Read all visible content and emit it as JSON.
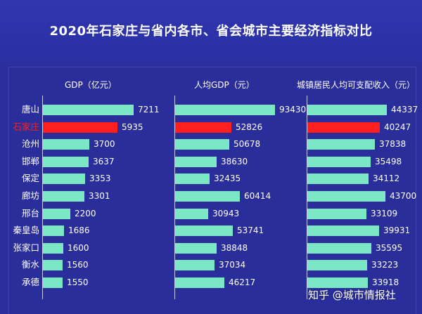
{
  "title": "2020年石家庄与省内各市、省会城市主要经济指标对比",
  "watermark": "知乎 @城市情报社",
  "colors": {
    "bar": "#7be7c4",
    "highlight": "#ff1f1f",
    "background": "#2b2f9e"
  },
  "chart_data": {
    "type": "bar",
    "orientation": "horizontal",
    "categories": [
      "唐山",
      "石家庄",
      "沧州",
      "邯郸",
      "保定",
      "廊坊",
      "邢台",
      "秦皇岛",
      "张家口",
      "衡水",
      "承德"
    ],
    "highlight_category": "石家庄",
    "series": [
      {
        "name": "GDP（亿元）",
        "values": [
          7211,
          5935,
          3700,
          3637,
          3353,
          3301,
          2200,
          1686,
          1600,
          1560,
          1550
        ]
      },
      {
        "name": "人均GDP（元）",
        "values": [
          93430,
          52826,
          50678,
          38630,
          32435,
          60414,
          30943,
          53741,
          38848,
          37034,
          46217
        ]
      },
      {
        "name": "城镇居民人均可支配收入（元）",
        "values": [
          44337,
          40247,
          37838,
          35498,
          34112,
          43700,
          33109,
          39931,
          35595,
          33223,
          33918
        ]
      }
    ],
    "grid": false,
    "legend": "none"
  }
}
